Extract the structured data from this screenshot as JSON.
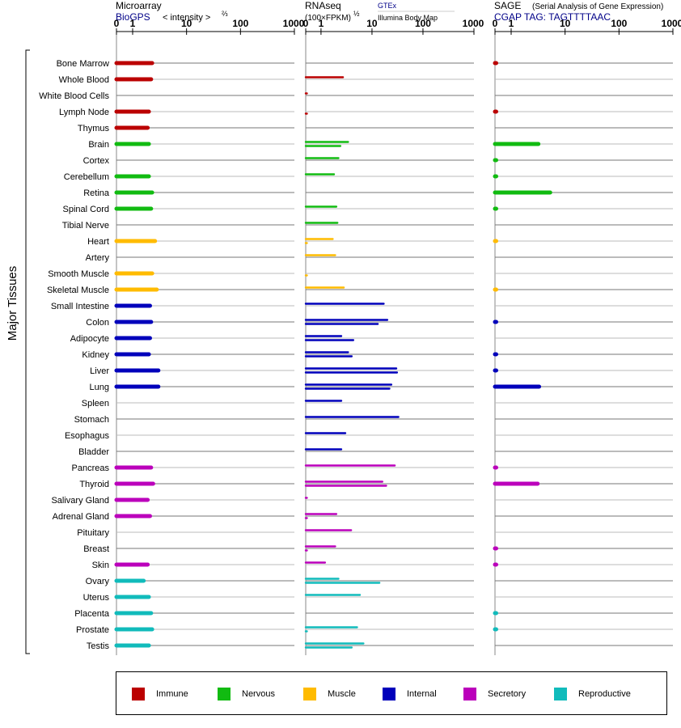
{
  "y_title": "Major Tissues",
  "panels": [
    {
      "id": "microarray",
      "title_main": "Microarray",
      "title_sub": "BioGPS",
      "title_note": "< intensity >",
      "title_exp": "⅔",
      "ticks": [
        "0",
        "1",
        "10",
        "100",
        "1000"
      ]
    },
    {
      "id": "rnaseq",
      "title_main": "RNAseq",
      "title_sub": "(100×FPKM)",
      "title_exp": "½",
      "legend_top": "GTEx",
      "legend_bottom": "Illumina Body Map",
      "ticks": [
        "0",
        "1",
        "10",
        "100",
        "1000"
      ]
    },
    {
      "id": "sage",
      "title_main": "SAGE",
      "title_note": "(Serial Analysis of Gene Expression)",
      "title_sub": "CGAP TAG: TAGTTTTAAC",
      "ticks": [
        "0",
        "1",
        "10",
        "100",
        "1000"
      ]
    }
  ],
  "colors": {
    "Immune": "#bb0000",
    "Nervous": "#11bb11",
    "Muscle": "#ffbb00",
    "Internal": "#0000bb",
    "Secretory": "#bb00bb",
    "Reproductive": "#11bbbb",
    "axis": "#000000",
    "row_line_dark": "#777777",
    "row_line_light": "#bbbbbb",
    "title_blue": "#000088"
  },
  "legend": [
    "Immune",
    "Nervous",
    "Muscle",
    "Internal",
    "Secretory",
    "Reproductive"
  ],
  "chart_data": {
    "type": "bar",
    "x_scale": "log-like (0, 1, 10, 100, 1000)",
    "xlim": [
      0,
      1000
    ],
    "categories": [
      "Bone Marrow",
      "Whole Blood",
      "White Blood Cells",
      "Lymph Node",
      "Thymus",
      "Brain",
      "Cortex",
      "Cerebellum",
      "Retina",
      "Spinal Cord",
      "Tibial Nerve",
      "Heart",
      "Artery",
      "Smooth Muscle",
      "Skeletal Muscle",
      "Small Intestine",
      "Colon",
      "Adipocyte",
      "Kidney",
      "Liver",
      "Lung",
      "Spleen",
      "Stomach",
      "Esophagus",
      "Bladder",
      "Pancreas",
      "Thyroid",
      "Salivary Gland",
      "Adrenal Gland",
      "Pituitary",
      "Breast",
      "Skin",
      "Ovary",
      "Uterus",
      "Placenta",
      "Prostate",
      "Testis"
    ],
    "groups": [
      "Immune",
      "Immune",
      "Immune",
      "Immune",
      "Immune",
      "Nervous",
      "Nervous",
      "Nervous",
      "Nervous",
      "Nervous",
      "Nervous",
      "Muscle",
      "Muscle",
      "Muscle",
      "Muscle",
      "Internal",
      "Internal",
      "Internal",
      "Internal",
      "Internal",
      "Internal",
      "Internal",
      "Internal",
      "Internal",
      "Internal",
      "Secretory",
      "Secretory",
      "Secretory",
      "Secretory",
      "Secretory",
      "Secretory",
      "Secretory",
      "Reproductive",
      "Reproductive",
      "Reproductive",
      "Reproductive",
      "Reproductive"
    ],
    "series": [
      {
        "name": "BioGPS",
        "values": [
          2.3,
          2.2,
          null,
          2.0,
          1.9,
          2.0,
          null,
          2.0,
          2.3,
          2.2,
          null,
          2.6,
          null,
          2.3,
          2.8,
          2.1,
          2.2,
          2.1,
          2.0,
          3.0,
          3.0,
          null,
          null,
          null,
          null,
          2.2,
          2.4,
          1.9,
          2.1,
          null,
          null,
          1.9,
          1.6,
          2.0,
          2.2,
          2.3,
          2.0
        ]
      },
      {
        "name": "GTEx",
        "values": [
          null,
          2.7,
          0.05,
          null,
          null,
          3.4,
          2.2,
          1.8,
          null,
          2.0,
          2.1,
          1.7,
          1.9,
          null,
          2.8,
          17,
          20,
          2.5,
          3.4,
          30,
          24,
          2.5,
          33,
          3.0,
          2.5,
          28,
          16,
          0.05,
          2.0,
          3.9,
          1.9,
          1.2,
          2.2,
          5.8,
          null,
          5.1,
          6.8
        ]
      },
      {
        "name": "Illumina Body Map",
        "values": [
          null,
          null,
          null,
          0.05,
          null,
          2.4,
          null,
          null,
          null,
          null,
          null,
          0.05,
          null,
          0.05,
          null,
          null,
          13,
          4.3,
          4.0,
          31,
          22,
          null,
          null,
          null,
          null,
          null,
          19,
          null,
          0.05,
          null,
          0.05,
          null,
          14,
          null,
          null,
          0.05,
          4.0
        ]
      },
      {
        "name": "SAGE",
        "values": [
          0.05,
          null,
          null,
          0.05,
          null,
          3.2,
          0.05,
          0.05,
          5.3,
          0.05,
          null,
          0.05,
          null,
          null,
          0.05,
          null,
          0.05,
          null,
          0.05,
          0.05,
          3.3,
          null,
          null,
          null,
          null,
          0.05,
          3.1,
          null,
          null,
          null,
          0.05,
          0.05,
          null,
          null,
          0.05,
          0.05,
          null
        ]
      }
    ]
  }
}
